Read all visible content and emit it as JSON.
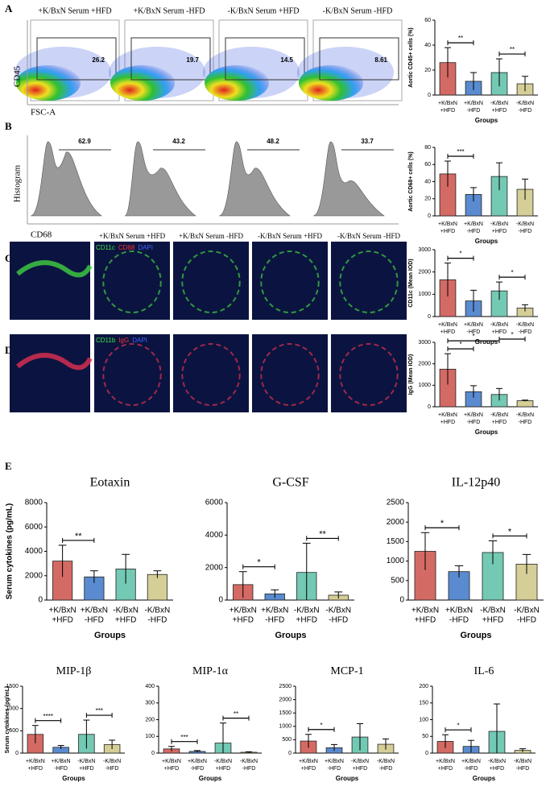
{
  "panel_labels": [
    "A",
    "B",
    "C",
    "D",
    "E"
  ],
  "group_titles": [
    "+K/BxN Serum  +HFD",
    "+K/BxN Serum  -HFD",
    "-K/BxN Serum  +HFD",
    "-K/BxN Serum  -HFD"
  ],
  "flow": {
    "y_label": "CD45",
    "x_label": "FSC-A",
    "gates": [
      26.2,
      19.7,
      14.5,
      8.61
    ]
  },
  "histogram": {
    "y_label": "Histogram",
    "x_label": "CD68",
    "gates": [
      62.9,
      43.2,
      48.2,
      33.7
    ]
  },
  "stain_c": [
    "CD11c",
    "CD68",
    "DAPI"
  ],
  "stain_d": [
    "CD11b",
    "IgG",
    "DAPI"
  ],
  "chart_data": [
    {
      "type": "bar",
      "ylabel": "Aortic CD45+ cells (%)",
      "xlabel": "Groups",
      "categories": [
        [
          "+K/BxN",
          "+HFD"
        ],
        [
          "+K/BxN",
          "-HFD"
        ],
        [
          "-K/BxN",
          "+HFD"
        ],
        [
          "-K/BxN",
          "-HFD"
        ]
      ],
      "values": [
        26,
        11,
        18,
        9
      ],
      "errors": [
        12,
        7,
        11,
        6
      ],
      "colors": [
        "#d46a64",
        "#5a8bd0",
        "#73c9b3",
        "#d5cf97"
      ],
      "ylim": [
        0,
        60
      ],
      "yticks": [
        0,
        20,
        40,
        60
      ],
      "annotations": [
        {
          "text": "**",
          "pair": [
            0,
            1
          ]
        },
        {
          "text": "**",
          "pair": [
            2,
            3
          ]
        }
      ]
    },
    {
      "type": "bar",
      "ylabel": "Aortic CD68+ cells (%)",
      "xlabel": "Groups",
      "categories": [
        [
          "+K/BxN",
          "+HFD"
        ],
        [
          "+K/BxN",
          "-HFD"
        ],
        [
          "-K/BxN",
          "+HFD"
        ],
        [
          "-K/BxN",
          "-HFD"
        ]
      ],
      "values": [
        49,
        25,
        46,
        31
      ],
      "errors": [
        15,
        8,
        16,
        12
      ],
      "colors": [
        "#d46a64",
        "#5a8bd0",
        "#73c9b3",
        "#d5cf97"
      ],
      "ylim": [
        0,
        80
      ],
      "yticks": [
        0,
        20,
        40,
        60,
        80
      ],
      "annotations": [
        {
          "text": "***",
          "pair": [
            0,
            1
          ]
        }
      ]
    },
    {
      "type": "bar",
      "ylabel": "CD11c (Mean IOD)",
      "xlabel": "Groups",
      "categories": [
        [
          "+K/BxN",
          "+HFD"
        ],
        [
          "+K/BxN",
          "-HFD"
        ],
        [
          "-K/BxN",
          "+HFD"
        ],
        [
          "-K/BxN",
          "-HFD"
        ]
      ],
      "values": [
        1650,
        700,
        1150,
        380
      ],
      "errors": [
        750,
        480,
        400,
        150
      ],
      "colors": [
        "#d46a64",
        "#5a8bd0",
        "#73c9b3",
        "#d5cf97"
      ],
      "ylim": [
        0,
        3000
      ],
      "yticks": [
        0,
        1000,
        2000,
        3000
      ],
      "annotations": [
        {
          "text": "*",
          "pair": [
            0,
            1
          ]
        },
        {
          "text": "*",
          "pair": [
            2,
            3
          ]
        }
      ]
    },
    {
      "type": "bar",
      "ylabel": "IgG (Mean IOD)",
      "xlabel": "Groups",
      "categories": [
        [
          "+K/BxN",
          "+HFD"
        ],
        [
          "+K/BxN",
          "-HFD"
        ],
        [
          "-K/BxN",
          "+HFD"
        ],
        [
          "-K/BxN",
          "-HFD"
        ]
      ],
      "values": [
        1750,
        700,
        570,
        280
      ],
      "errors": [
        720,
        280,
        280,
        30
      ],
      "colors": [
        "#d46a64",
        "#5a8bd0",
        "#73c9b3",
        "#d5cf97"
      ],
      "ylim": [
        0,
        3000
      ],
      "yticks": [
        0,
        1000,
        2000,
        3000
      ],
      "annotations": [
        {
          "text": "*",
          "pair": [
            0,
            1
          ]
        },
        {
          "text": "*",
          "pair": [
            0,
            2
          ]
        },
        {
          "text": "*",
          "pair": [
            2,
            3
          ]
        }
      ]
    },
    {
      "type": "bar",
      "title": "Eotaxin",
      "ylabel": "Serum cytokines (pg/mL)",
      "xlabel": "Groups",
      "categories": [
        [
          "+K/BxN",
          "+HFD"
        ],
        [
          "+K/BxN",
          "-HFD"
        ],
        [
          "-K/BxN",
          "+HFD"
        ],
        [
          "-K/BxN",
          "-HFD"
        ]
      ],
      "values": [
        3200,
        1900,
        2550,
        2100
      ],
      "errors": [
        1300,
        500,
        1200,
        300
      ],
      "colors": [
        "#d46a64",
        "#5a8bd0",
        "#73c9b3",
        "#d5cf97"
      ],
      "ylim": [
        0,
        8000
      ],
      "yticks": [
        0,
        2000,
        4000,
        6000,
        8000
      ],
      "annotations": [
        {
          "text": "**",
          "pair": [
            0,
            1
          ]
        }
      ]
    },
    {
      "type": "bar",
      "title": "G-CSF",
      "xlabel": "Groups",
      "categories": [
        [
          "+K/BxN",
          "+HFD"
        ],
        [
          "+K/BxN",
          "-HFD"
        ],
        [
          "-K/BxN",
          "+HFD"
        ],
        [
          "-K/BxN",
          "-HFD"
        ]
      ],
      "values": [
        950,
        380,
        1700,
        300
      ],
      "errors": [
        800,
        250,
        1800,
        200
      ],
      "colors": [
        "#d46a64",
        "#5a8bd0",
        "#73c9b3",
        "#d5cf97"
      ],
      "ylim": [
        0,
        6000
      ],
      "yticks": [
        0,
        2000,
        4000,
        6000
      ],
      "annotations": [
        {
          "text": "*",
          "pair": [
            0,
            1
          ]
        },
        {
          "text": "**",
          "pair": [
            2,
            3
          ]
        }
      ]
    },
    {
      "type": "bar",
      "title": "IL-12p40",
      "xlabel": "Groups",
      "categories": [
        [
          "+K/BxN",
          "+HFD"
        ],
        [
          "+K/BxN",
          "-HFD"
        ],
        [
          "-K/BxN",
          "+HFD"
        ],
        [
          "-K/BxN",
          "-HFD"
        ]
      ],
      "values": [
        1250,
        730,
        1220,
        920
      ],
      "errors": [
        480,
        150,
        300,
        250
      ],
      "colors": [
        "#d46a64",
        "#5a8bd0",
        "#73c9b3",
        "#d5cf97"
      ],
      "ylim": [
        0,
        2500
      ],
      "yticks": [
        0,
        500,
        1000,
        1500,
        2000,
        2500
      ],
      "annotations": [
        {
          "text": "*",
          "pair": [
            0,
            1
          ]
        },
        {
          "text": "*",
          "pair": [
            2,
            3
          ]
        }
      ]
    },
    {
      "type": "bar",
      "title": "MIP-1β",
      "ylabel": "Serum cytokines (pg/mL)",
      "xlabel": "Groups",
      "categories": [
        [
          "+K/BxN",
          "+HFD"
        ],
        [
          "+K/BxN",
          "-HFD"
        ],
        [
          "-K/BxN",
          "+HFD"
        ],
        [
          "-K/BxN",
          "-HFD"
        ]
      ],
      "values": [
        420,
        130,
        420,
        190
      ],
      "errors": [
        200,
        40,
        320,
        100
      ],
      "colors": [
        "#d46a64",
        "#5a8bd0",
        "#73c9b3",
        "#d5cf97"
      ],
      "ylim": [
        0,
        1500
      ],
      "yticks": [
        0,
        500,
        1000,
        1500
      ],
      "annotations": [
        {
          "text": "****",
          "pair": [
            0,
            1
          ]
        },
        {
          "text": "***",
          "pair": [
            2,
            3
          ]
        }
      ]
    },
    {
      "type": "bar",
      "title": "MIP-1α",
      "xlabel": "Groups",
      "categories": [
        [
          "+K/BxN",
          "+HFD"
        ],
        [
          "+K/BxN",
          "-HFD"
        ],
        [
          "-K/BxN",
          "+HFD"
        ],
        [
          "-K/BxN",
          "-HFD"
        ]
      ],
      "values": [
        25,
        10,
        60,
        5
      ],
      "errors": [
        15,
        5,
        120,
        3
      ],
      "colors": [
        "#d46a64",
        "#5a8bd0",
        "#73c9b3",
        "#d5cf97"
      ],
      "ylim": [
        0,
        400
      ],
      "yticks": [
        0,
        100,
        200,
        300,
        400
      ],
      "annotations": [
        {
          "text": "***",
          "pair": [
            0,
            1
          ]
        },
        {
          "text": "**",
          "pair": [
            2,
            3
          ]
        }
      ]
    },
    {
      "type": "bar",
      "title": "MCP-1",
      "xlabel": "Groups",
      "categories": [
        [
          "+K/BxN",
          "+HFD"
        ],
        [
          "+K/BxN",
          "-HFD"
        ],
        [
          "-K/BxN",
          "+HFD"
        ],
        [
          "-K/BxN",
          "-HFD"
        ]
      ],
      "values": [
        450,
        200,
        600,
        330
      ],
      "errors": [
        250,
        120,
        500,
        200
      ],
      "colors": [
        "#d46a64",
        "#5a8bd0",
        "#73c9b3",
        "#d5cf97"
      ],
      "ylim": [
        0,
        2500
      ],
      "yticks": [
        0,
        500,
        1000,
        1500,
        2000,
        2500
      ],
      "annotations": [
        {
          "text": "*",
          "pair": [
            0,
            1
          ]
        }
      ]
    },
    {
      "type": "bar",
      "title": "IL-6",
      "xlabel": "Groups",
      "categories": [
        [
          "+K/BxN",
          "+HFD"
        ],
        [
          "+K/BxN",
          "-HFD"
        ],
        [
          "-K/BxN",
          "+HFD"
        ],
        [
          "-K/BxN",
          "-HFD"
        ]
      ],
      "values": [
        35,
        20,
        65,
        8
      ],
      "errors": [
        20,
        18,
        82,
        5
      ],
      "colors": [
        "#d46a64",
        "#5a8bd0",
        "#73c9b3",
        "#d5cf97"
      ],
      "ylim": [
        0,
        200
      ],
      "yticks": [
        0,
        50,
        100,
        150,
        200
      ],
      "annotations": [
        {
          "text": "*",
          "pair": [
            0,
            1
          ]
        }
      ]
    }
  ]
}
